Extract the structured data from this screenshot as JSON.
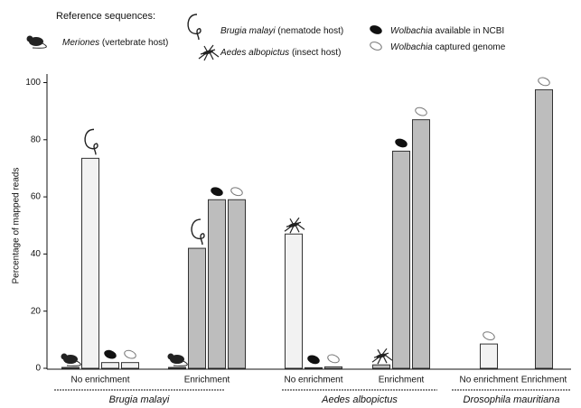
{
  "chart_data": {
    "type": "bar",
    "legend_title": "Reference sequences:",
    "y_label": "Percentage of mapped reads",
    "ylim": [
      0,
      103
    ],
    "yticks": [
      0,
      20,
      40,
      60,
      80,
      100
    ],
    "categories": [
      "No enrichment",
      "Enrichment",
      "No enrichment",
      "Enrichment",
      "No enrichment",
      "Enrichment"
    ],
    "groups": [
      "Brugia malayi",
      "Aedes albopictus",
      "Drosophila mauritiana"
    ],
    "bar_colors": [
      "#f2f2f2",
      "#bdbdbd",
      "#f2f2f2",
      "#bdbdbd",
      "#f2f2f2",
      "#bdbdbd"
    ],
    "series": [
      {
        "name": "Meriones",
        "note": "(vertebrate host)",
        "values": [
          0.3,
          0.3,
          null,
          null,
          null,
          null
        ]
      },
      {
        "name": "Brugia malayi",
        "note": "(nematode host)",
        "values": [
          73.5,
          42,
          null,
          null,
          null,
          null
        ]
      },
      {
        "name": "Aedes albopictus",
        "note": "(insect host)",
        "values": [
          null,
          null,
          47,
          1.2,
          null,
          null
        ]
      },
      {
        "name": "Wolbachia",
        "note": "available in NCBI",
        "values": [
          2,
          59,
          0.2,
          76,
          null,
          null
        ]
      },
      {
        "name": "Wolbachia",
        "note": "captured genome",
        "values": [
          2,
          59,
          0.5,
          87,
          8.5,
          97.5
        ]
      }
    ]
  }
}
